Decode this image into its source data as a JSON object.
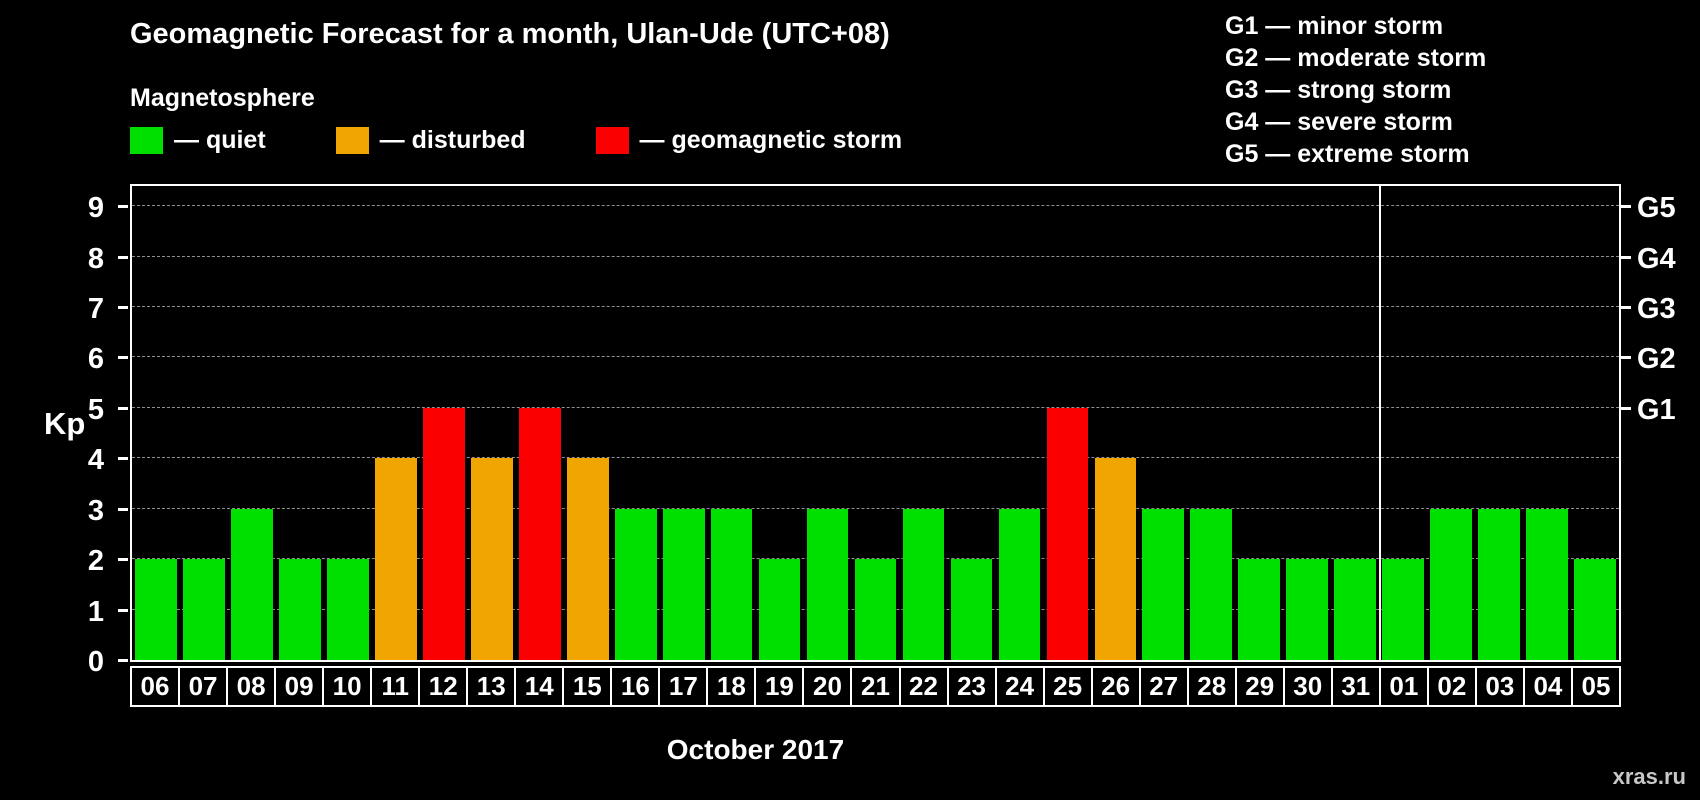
{
  "title": "Geomagnetic Forecast for a month, Ulan-Ude (UTC+08)",
  "subtitle": "Magnetosphere",
  "legend": [
    {
      "key": "quiet",
      "label": "— quiet",
      "color": "#00e000"
    },
    {
      "key": "disturbed",
      "label": "— disturbed",
      "color": "#f0a500"
    },
    {
      "key": "storm",
      "label": "— geomagnetic storm",
      "color": "#fa0000"
    }
  ],
  "g_scale_legend": [
    "G1 — minor storm",
    "G2 — moderate storm",
    "G3 — strong storm",
    "G4 — severe storm",
    "G5 — extreme storm"
  ],
  "watermark": "xras.ru",
  "chart_data": {
    "type": "bar",
    "title": "Geomagnetic Forecast for a month, Ulan-Ude (UTC+08)",
    "xlabel": "October 2017",
    "ylabel": "Kp",
    "ylim": [
      0,
      9.4
    ],
    "yticks": [
      0,
      1,
      2,
      3,
      4,
      5,
      6,
      7,
      8,
      9
    ],
    "grid": "dashed horizontal",
    "legend_position": "top",
    "categories": [
      "06",
      "07",
      "08",
      "09",
      "10",
      "11",
      "12",
      "13",
      "14",
      "15",
      "16",
      "17",
      "18",
      "19",
      "20",
      "21",
      "22",
      "23",
      "24",
      "25",
      "26",
      "27",
      "28",
      "29",
      "30",
      "31",
      "01",
      "02",
      "03",
      "04",
      "05"
    ],
    "values": [
      2,
      2,
      3,
      2,
      2,
      4,
      5,
      4,
      5,
      4,
      3,
      3,
      3,
      2,
      3,
      2,
      3,
      2,
      3,
      5,
      4,
      3,
      3,
      2,
      2,
      2,
      2,
      3,
      3,
      3,
      2
    ],
    "statuses": [
      "quiet",
      "quiet",
      "quiet",
      "quiet",
      "quiet",
      "disturbed",
      "storm",
      "disturbed",
      "storm",
      "disturbed",
      "quiet",
      "quiet",
      "quiet",
      "quiet",
      "quiet",
      "quiet",
      "quiet",
      "quiet",
      "quiet",
      "storm",
      "disturbed",
      "quiet",
      "quiet",
      "quiet",
      "quiet",
      "quiet",
      "quiet",
      "quiet",
      "quiet",
      "quiet",
      "quiet"
    ],
    "colors": {
      "quiet": "#00e000",
      "disturbed": "#f0a500",
      "storm": "#fa0000"
    },
    "right_axis": [
      {
        "label": "G1",
        "value": 5
      },
      {
        "label": "G2",
        "value": 6
      },
      {
        "label": "G3",
        "value": 7
      },
      {
        "label": "G4",
        "value": 8
      },
      {
        "label": "G5",
        "value": 9
      }
    ],
    "month_separator_after": "31"
  }
}
